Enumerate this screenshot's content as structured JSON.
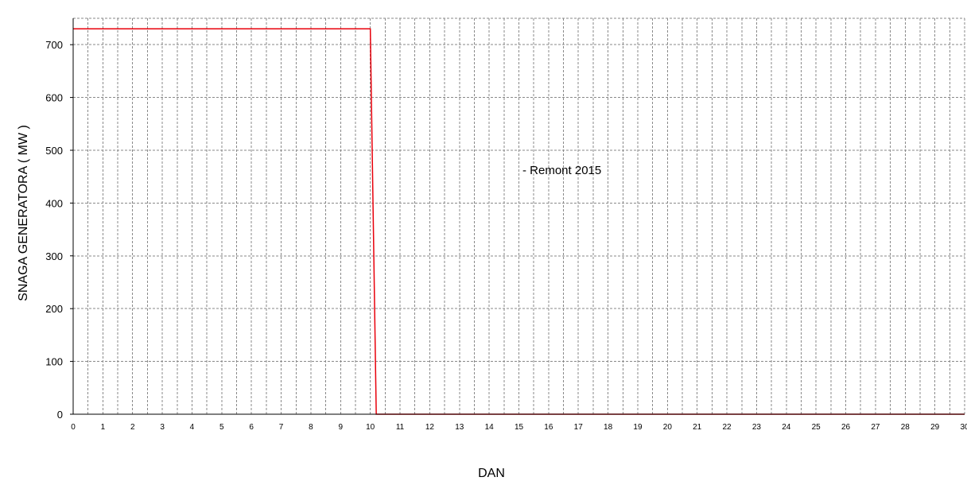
{
  "chart_data": {
    "type": "line",
    "xlabel": "DAN",
    "ylabel": "SNAGA GENERATORA  ( MW )",
    "xlim": [
      0,
      30
    ],
    "ylim": [
      0,
      750
    ],
    "x_ticks": [
      0,
      1,
      2,
      3,
      4,
      5,
      6,
      7,
      8,
      9,
      10,
      11,
      12,
      13,
      14,
      15,
      16,
      17,
      18,
      19,
      20,
      21,
      22,
      23,
      24,
      25,
      26,
      27,
      28,
      29,
      30
    ],
    "y_ticks": [
      0,
      100,
      200,
      300,
      400,
      500,
      600,
      700
    ],
    "grid": true,
    "minor_x_grid_step": 0.5,
    "annotation": "- Remont 2015",
    "series": [
      {
        "color": "#e8000b",
        "x": [
          0,
          10,
          10.2,
          30
        ],
        "y": [
          730,
          730,
          0,
          0
        ]
      }
    ]
  }
}
